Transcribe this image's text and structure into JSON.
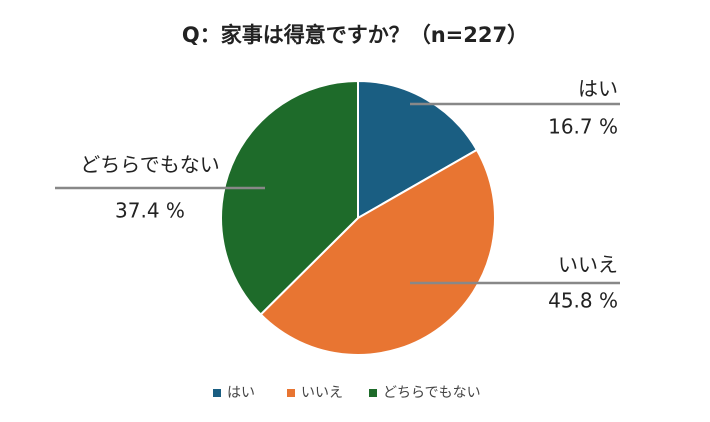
{
  "chart_data": {
    "type": "pie",
    "title": "Q：家事は得意ですか？（n=227）",
    "categories": [
      "はい",
      "いいえ",
      "どちらでもない"
    ],
    "values": [
      16.7,
      45.8,
      37.4
    ],
    "value_labels": [
      "16.7 %",
      "45.8 %",
      "37.4 %"
    ],
    "colors": [
      "#1a5e82",
      "#e87532",
      "#1e6b2a"
    ],
    "legend": "bottom"
  }
}
